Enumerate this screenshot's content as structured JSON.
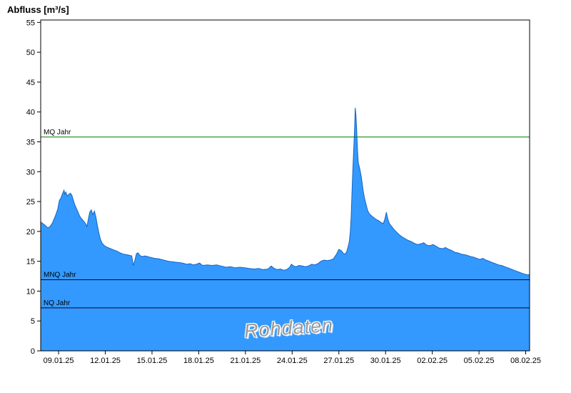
{
  "page": {
    "title": "Abfluss [m³/s]",
    "watermark": "Rohdaten"
  },
  "chart_data": {
    "type": "area",
    "title": "Abfluss [m³/s]",
    "xlabel": "",
    "ylabel": "Abfluss [m³/s]",
    "grid": false,
    "legend": "none",
    "ylim": [
      0,
      55.4
    ],
    "xlim_days": [
      0,
      31.4
    ],
    "y_ticks": [
      0,
      5,
      10,
      15,
      20,
      25,
      30,
      35,
      40,
      45,
      50,
      55
    ],
    "x_tick_labels": [
      "09.01.25",
      "12.01.25",
      "15.01.25",
      "18.01.25",
      "21.01.25",
      "24.01.25",
      "27.01.25",
      "30.01.25",
      "02.02.25",
      "05.02.25",
      "08.02.25"
    ],
    "x_tick_days": [
      1.15,
      4.15,
      7.15,
      10.15,
      13.15,
      16.15,
      19.15,
      22.15,
      25.15,
      28.15,
      31.15
    ],
    "reference_lines": [
      {
        "label": "MQ Jahr",
        "value": 35.8,
        "color": "#007800"
      },
      {
        "label": "MNQ Jahr",
        "value": 11.9,
        "color": "#000033"
      },
      {
        "label": "NQ Jahr",
        "value": 7.2,
        "color": "#000033"
      }
    ],
    "series": [
      {
        "name": "Rohdaten",
        "fill_color": "#3399FF",
        "line_color": "#1565C0",
        "points": [
          [
            0,
            21.6
          ],
          [
            0.15,
            21.3
          ],
          [
            0.3,
            21.0
          ],
          [
            0.45,
            20.6
          ],
          [
            0.6,
            20.8
          ],
          [
            0.75,
            21.4
          ],
          [
            0.9,
            22.3
          ],
          [
            1.0,
            23.0
          ],
          [
            1.1,
            23.8
          ],
          [
            1.2,
            25.2
          ],
          [
            1.3,
            25.6
          ],
          [
            1.4,
            26.3
          ],
          [
            1.5,
            26.9
          ],
          [
            1.55,
            26.2
          ],
          [
            1.62,
            26.6
          ],
          [
            1.7,
            25.9
          ],
          [
            1.8,
            26.2
          ],
          [
            1.9,
            26.4
          ],
          [
            2.0,
            26.1
          ],
          [
            2.1,
            25.2
          ],
          [
            2.2,
            24.4
          ],
          [
            2.3,
            23.8
          ],
          [
            2.4,
            23.2
          ],
          [
            2.5,
            22.6
          ],
          [
            2.6,
            22.2
          ],
          [
            2.7,
            21.9
          ],
          [
            2.8,
            21.6
          ],
          [
            2.9,
            21.2
          ],
          [
            2.97,
            20.8
          ],
          [
            3.05,
            21.9
          ],
          [
            3.15,
            23.2
          ],
          [
            3.25,
            23.6
          ],
          [
            3.35,
            22.8
          ],
          [
            3.45,
            23.4
          ],
          [
            3.55,
            22.4
          ],
          [
            3.65,
            20.9
          ],
          [
            3.75,
            19.6
          ],
          [
            3.85,
            18.6
          ],
          [
            3.95,
            18.0
          ],
          [
            4.1,
            17.6
          ],
          [
            4.3,
            17.3
          ],
          [
            4.5,
            17.1
          ],
          [
            4.7,
            16.9
          ],
          [
            4.9,
            16.7
          ],
          [
            5.1,
            16.4
          ],
          [
            5.3,
            16.2
          ],
          [
            5.5,
            16.1
          ],
          [
            5.7,
            16.0
          ],
          [
            5.85,
            15.9
          ],
          [
            5.95,
            14.3
          ],
          [
            6.05,
            15.2
          ],
          [
            6.15,
            16.3
          ],
          [
            6.25,
            16.4
          ],
          [
            6.4,
            15.9
          ],
          [
            6.55,
            15.8
          ],
          [
            6.7,
            15.9
          ],
          [
            6.85,
            15.8
          ],
          [
            7.0,
            15.7
          ],
          [
            7.3,
            15.5
          ],
          [
            7.6,
            15.4
          ],
          [
            7.9,
            15.2
          ],
          [
            8.2,
            15.0
          ],
          [
            8.5,
            14.9
          ],
          [
            8.8,
            14.8
          ],
          [
            9.1,
            14.7
          ],
          [
            9.4,
            14.5
          ],
          [
            9.6,
            14.6
          ],
          [
            9.8,
            14.4
          ],
          [
            10.0,
            14.5
          ],
          [
            10.2,
            14.7
          ],
          [
            10.4,
            14.3
          ],
          [
            10.7,
            14.4
          ],
          [
            11.0,
            14.3
          ],
          [
            11.3,
            14.4
          ],
          [
            11.6,
            14.2
          ],
          [
            11.9,
            14.0
          ],
          [
            12.2,
            14.1
          ],
          [
            12.5,
            13.9
          ],
          [
            12.8,
            14.0
          ],
          [
            13.1,
            13.9
          ],
          [
            13.4,
            13.8
          ],
          [
            13.7,
            13.7
          ],
          [
            14.0,
            13.8
          ],
          [
            14.3,
            13.6
          ],
          [
            14.6,
            13.7
          ],
          [
            14.8,
            14.2
          ],
          [
            15.0,
            13.8
          ],
          [
            15.2,
            13.6
          ],
          [
            15.4,
            13.7
          ],
          [
            15.6,
            13.5
          ],
          [
            15.8,
            13.6
          ],
          [
            16.0,
            14.0
          ],
          [
            16.1,
            14.5
          ],
          [
            16.25,
            14.2
          ],
          [
            16.4,
            14.1
          ],
          [
            16.6,
            14.3
          ],
          [
            16.8,
            14.2
          ],
          [
            17.0,
            14.1
          ],
          [
            17.2,
            14.2
          ],
          [
            17.4,
            14.5
          ],
          [
            17.6,
            14.4
          ],
          [
            17.8,
            14.6
          ],
          [
            18.0,
            15.0
          ],
          [
            18.2,
            15.2
          ],
          [
            18.4,
            15.1
          ],
          [
            18.6,
            15.2
          ],
          [
            18.8,
            15.4
          ],
          [
            19.0,
            16.2
          ],
          [
            19.15,
            17.0
          ],
          [
            19.3,
            16.8
          ],
          [
            19.45,
            16.3
          ],
          [
            19.55,
            16.2
          ],
          [
            19.65,
            16.6
          ],
          [
            19.75,
            17.5
          ],
          [
            19.82,
            18.3
          ],
          [
            19.88,
            19.8
          ],
          [
            19.94,
            22.5
          ],
          [
            20.0,
            27.0
          ],
          [
            20.05,
            30.5
          ],
          [
            20.1,
            33.5
          ],
          [
            20.15,
            36.5
          ],
          [
            20.2,
            40.7
          ],
          [
            20.25,
            39.3
          ],
          [
            20.3,
            36.5
          ],
          [
            20.35,
            33.5
          ],
          [
            20.4,
            31.5
          ],
          [
            20.5,
            30.4
          ],
          [
            20.6,
            29.0
          ],
          [
            20.7,
            27.0
          ],
          [
            20.8,
            25.5
          ],
          [
            20.9,
            24.5
          ],
          [
            21.0,
            23.5
          ],
          [
            21.1,
            23.0
          ],
          [
            21.25,
            22.6
          ],
          [
            21.4,
            22.3
          ],
          [
            21.55,
            22.0
          ],
          [
            21.7,
            21.8
          ],
          [
            21.85,
            21.5
          ],
          [
            22.0,
            21.3
          ],
          [
            22.1,
            22.0
          ],
          [
            22.2,
            23.2
          ],
          [
            22.3,
            22.0
          ],
          [
            22.4,
            21.3
          ],
          [
            22.55,
            20.8
          ],
          [
            22.7,
            20.3
          ],
          [
            22.85,
            19.9
          ],
          [
            23.0,
            19.5
          ],
          [
            23.2,
            19.1
          ],
          [
            23.4,
            18.8
          ],
          [
            23.6,
            18.5
          ],
          [
            23.8,
            18.3
          ],
          [
            24.0,
            18.0
          ],
          [
            24.2,
            17.8
          ],
          [
            24.4,
            17.9
          ],
          [
            24.6,
            18.1
          ],
          [
            24.8,
            17.7
          ],
          [
            25.0,
            17.6
          ],
          [
            25.2,
            17.8
          ],
          [
            25.4,
            17.5
          ],
          [
            25.6,
            17.2
          ],
          [
            25.8,
            17.1
          ],
          [
            26.0,
            17.3
          ],
          [
            26.2,
            17.0
          ],
          [
            26.4,
            16.8
          ],
          [
            26.6,
            16.5
          ],
          [
            26.8,
            16.4
          ],
          [
            27.0,
            16.2
          ],
          [
            27.2,
            16.1
          ],
          [
            27.4,
            16.0
          ],
          [
            27.6,
            15.8
          ],
          [
            27.8,
            15.7
          ],
          [
            28.0,
            15.5
          ],
          [
            28.2,
            15.3
          ],
          [
            28.4,
            15.5
          ],
          [
            28.6,
            15.2
          ],
          [
            28.8,
            15.0
          ],
          [
            29.0,
            14.8
          ],
          [
            29.2,
            14.6
          ],
          [
            29.4,
            14.4
          ],
          [
            29.6,
            14.3
          ],
          [
            29.8,
            14.1
          ],
          [
            30.0,
            13.9
          ],
          [
            30.2,
            13.7
          ],
          [
            30.4,
            13.5
          ],
          [
            30.6,
            13.3
          ],
          [
            30.8,
            13.1
          ],
          [
            31.0,
            12.9
          ],
          [
            31.15,
            12.8
          ],
          [
            31.3,
            12.7
          ],
          [
            31.4,
            12.8
          ]
        ]
      }
    ]
  }
}
